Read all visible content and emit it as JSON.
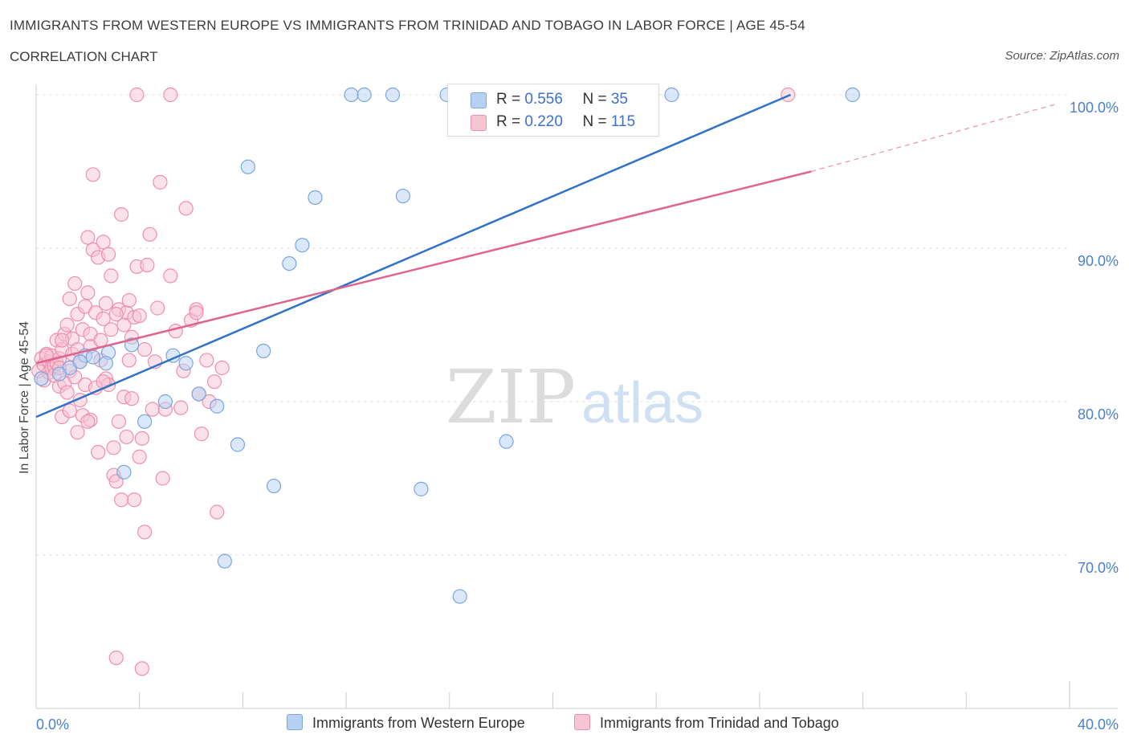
{
  "header": {
    "title": "IMMIGRANTS FROM WESTERN EUROPE VS IMMIGRANTS FROM TRINIDAD AND TOBAGO IN LABOR FORCE | AGE 45-54",
    "subtitle": "CORRELATION CHART",
    "source": "Source: ZipAtlas.com"
  },
  "watermark": {
    "zip": "ZIP",
    "atlas": "atlas"
  },
  "legend": {
    "r_label": "R = ",
    "n_label": "N = ",
    "rows": [
      {
        "r": "0.556",
        "n": "35"
      },
      {
        "r": "0.220",
        "n": "115"
      }
    ]
  },
  "colors": {
    "blue_fill": "#b7d1f3",
    "blue_stroke": "#7aa5de",
    "blue_line": "#2f72c8",
    "pink_fill": "#f7c4d4",
    "pink_stroke": "#ee8fae",
    "pink_line": "#e0648e",
    "grid": "#e3e3e3",
    "tick_text": "#4a7fd0"
  },
  "chart_data": {
    "type": "scatter",
    "xlabel": "",
    "ylabel": "In Labor Force | Age 45-54",
    "xlim": [
      0,
      40
    ],
    "ylim": [
      60,
      100
    ],
    "x_ticks": [
      {
        "value": 0,
        "label": "0.0%"
      },
      {
        "value": 40,
        "label": "40.0%"
      }
    ],
    "y_ticks": [
      {
        "value": 100,
        "label": "100.0%"
      },
      {
        "value": 90,
        "label": "90.0%"
      },
      {
        "value": 80,
        "label": "80.0%"
      },
      {
        "value": 70,
        "label": "70.0%"
      }
    ],
    "series": [
      {
        "name": "Immigrants from Western Europe",
        "color": "#b7d1f3",
        "trend": {
          "x": [
            0,
            29.2
          ],
          "y": [
            79.0,
            100.0
          ]
        },
        "points": [
          [
            0.2,
            81.5
          ],
          [
            1.9,
            83.0
          ],
          [
            1.3,
            82.2
          ],
          [
            2.2,
            82.9
          ],
          [
            2.8,
            83.2
          ],
          [
            2.7,
            82.5
          ],
          [
            3.7,
            83.7
          ],
          [
            5.3,
            83.0
          ],
          [
            5.8,
            82.5
          ],
          [
            6.3,
            80.5
          ],
          [
            5.0,
            80.0
          ],
          [
            4.2,
            78.7
          ],
          [
            3.4,
            75.4
          ],
          [
            7.0,
            79.7
          ],
          [
            7.8,
            77.2
          ],
          [
            8.2,
            95.3
          ],
          [
            8.8,
            83.3
          ],
          [
            9.2,
            74.5
          ],
          [
            9.8,
            89.0
          ],
          [
            10.3,
            90.2
          ],
          [
            10.8,
            93.3
          ],
          [
            12.2,
            100.0
          ],
          [
            12.7,
            100.0
          ],
          [
            13.8,
            100.0
          ],
          [
            14.2,
            93.4
          ],
          [
            15.9,
            100.0
          ],
          [
            18.0,
            100.0
          ],
          [
            18.2,
            77.4
          ],
          [
            14.9,
            74.3
          ],
          [
            16.4,
            67.3
          ],
          [
            24.6,
            100.0
          ],
          [
            31.6,
            100.0
          ],
          [
            7.3,
            69.6
          ],
          [
            0.9,
            81.8
          ],
          [
            1.7,
            82.6
          ]
        ]
      },
      {
        "name": "Immigrants from Trinidad and Tobago",
        "color": "#f7c4d4",
        "trend": {
          "x": [
            0,
            30.0
          ],
          "y": [
            82.5,
            95.0
          ]
        },
        "trend_dashed": {
          "x": [
            30.0,
            39.5
          ],
          "y": [
            95.0,
            99.4
          ]
        },
        "points": [
          [
            0.1,
            82.0
          ],
          [
            0.2,
            82.8
          ],
          [
            0.3,
            81.4
          ],
          [
            0.3,
            82.4
          ],
          [
            0.4,
            83.1
          ],
          [
            0.5,
            82.6
          ],
          [
            0.5,
            81.9
          ],
          [
            0.6,
            82.2
          ],
          [
            0.6,
            83.0
          ],
          [
            0.7,
            82.3
          ],
          [
            0.7,
            81.7
          ],
          [
            0.8,
            82.5
          ],
          [
            0.8,
            84.0
          ],
          [
            0.9,
            81.0
          ],
          [
            0.9,
            82.8
          ],
          [
            1.0,
            79.0
          ],
          [
            1.0,
            83.4
          ],
          [
            1.1,
            84.4
          ],
          [
            1.1,
            81.2
          ],
          [
            1.2,
            85.0
          ],
          [
            1.2,
            80.6
          ],
          [
            1.3,
            86.7
          ],
          [
            1.3,
            82.0
          ],
          [
            1.4,
            84.1
          ],
          [
            1.4,
            83.1
          ],
          [
            1.5,
            87.7
          ],
          [
            1.5,
            81.6
          ],
          [
            1.6,
            78.0
          ],
          [
            1.6,
            85.7
          ],
          [
            1.7,
            82.6
          ],
          [
            1.7,
            80.1
          ],
          [
            1.8,
            84.7
          ],
          [
            1.8,
            79.1
          ],
          [
            1.9,
            86.2
          ],
          [
            1.9,
            81.1
          ],
          [
            2.0,
            90.7
          ],
          [
            2.0,
            87.1
          ],
          [
            2.1,
            84.4
          ],
          [
            2.1,
            83.6
          ],
          [
            2.1,
            78.8
          ],
          [
            2.2,
            94.8
          ],
          [
            2.2,
            89.9
          ],
          [
            2.3,
            85.8
          ],
          [
            2.3,
            80.9
          ],
          [
            2.4,
            89.4
          ],
          [
            2.4,
            76.7
          ],
          [
            2.5,
            84.0
          ],
          [
            2.5,
            82.7
          ],
          [
            2.6,
            90.4
          ],
          [
            2.6,
            85.4
          ],
          [
            2.7,
            86.4
          ],
          [
            2.7,
            81.5
          ],
          [
            2.8,
            89.6
          ],
          [
            2.8,
            81.1
          ],
          [
            2.9,
            84.7
          ],
          [
            2.9,
            88.2
          ],
          [
            3.0,
            77.0
          ],
          [
            3.0,
            75.2
          ],
          [
            3.1,
            74.8
          ],
          [
            3.1,
            63.3
          ],
          [
            3.2,
            86.0
          ],
          [
            3.2,
            78.7
          ],
          [
            3.3,
            92.2
          ],
          [
            3.3,
            73.6
          ],
          [
            3.4,
            80.3
          ],
          [
            3.4,
            85.0
          ],
          [
            3.5,
            85.8
          ],
          [
            3.5,
            77.7
          ],
          [
            3.6,
            82.7
          ],
          [
            3.6,
            86.6
          ],
          [
            3.7,
            84.2
          ],
          [
            3.8,
            85.5
          ],
          [
            3.8,
            73.6
          ],
          [
            3.9,
            88.8
          ],
          [
            3.9,
            100.0
          ],
          [
            4.0,
            85.6
          ],
          [
            4.0,
            76.4
          ],
          [
            4.1,
            62.6
          ],
          [
            4.1,
            77.6
          ],
          [
            4.2,
            83.4
          ],
          [
            4.2,
            71.5
          ],
          [
            4.3,
            88.9
          ],
          [
            4.4,
            90.9
          ],
          [
            4.5,
            79.5
          ],
          [
            4.6,
            82.6
          ],
          [
            4.7,
            86.1
          ],
          [
            4.8,
            94.3
          ],
          [
            4.9,
            75.0
          ],
          [
            5.0,
            79.5
          ],
          [
            5.2,
            88.2
          ],
          [
            5.2,
            100.0
          ],
          [
            5.4,
            84.6
          ],
          [
            5.6,
            79.6
          ],
          [
            5.7,
            82.0
          ],
          [
            5.8,
            92.6
          ],
          [
            6.0,
            85.3
          ],
          [
            6.2,
            86.0
          ],
          [
            6.2,
            85.8
          ],
          [
            6.3,
            80.5
          ],
          [
            6.4,
            77.9
          ],
          [
            6.6,
            82.7
          ],
          [
            6.7,
            80.0
          ],
          [
            6.9,
            81.3
          ],
          [
            7.0,
            72.8
          ],
          [
            7.2,
            82.2
          ],
          [
            29.1,
            100.0
          ],
          [
            1.0,
            84.0
          ],
          [
            0.4,
            83.0
          ],
          [
            1.3,
            79.4
          ],
          [
            2.0,
            78.7
          ],
          [
            1.6,
            83.4
          ],
          [
            3.1,
            85.7
          ],
          [
            0.9,
            82.2
          ],
          [
            2.6,
            81.3
          ],
          [
            3.7,
            80.2
          ]
        ]
      }
    ]
  },
  "bottom_legend": {
    "items": [
      {
        "label": "Immigrants from Western Europe"
      },
      {
        "label": "Immigrants from Trinidad and Tobago"
      }
    ]
  }
}
